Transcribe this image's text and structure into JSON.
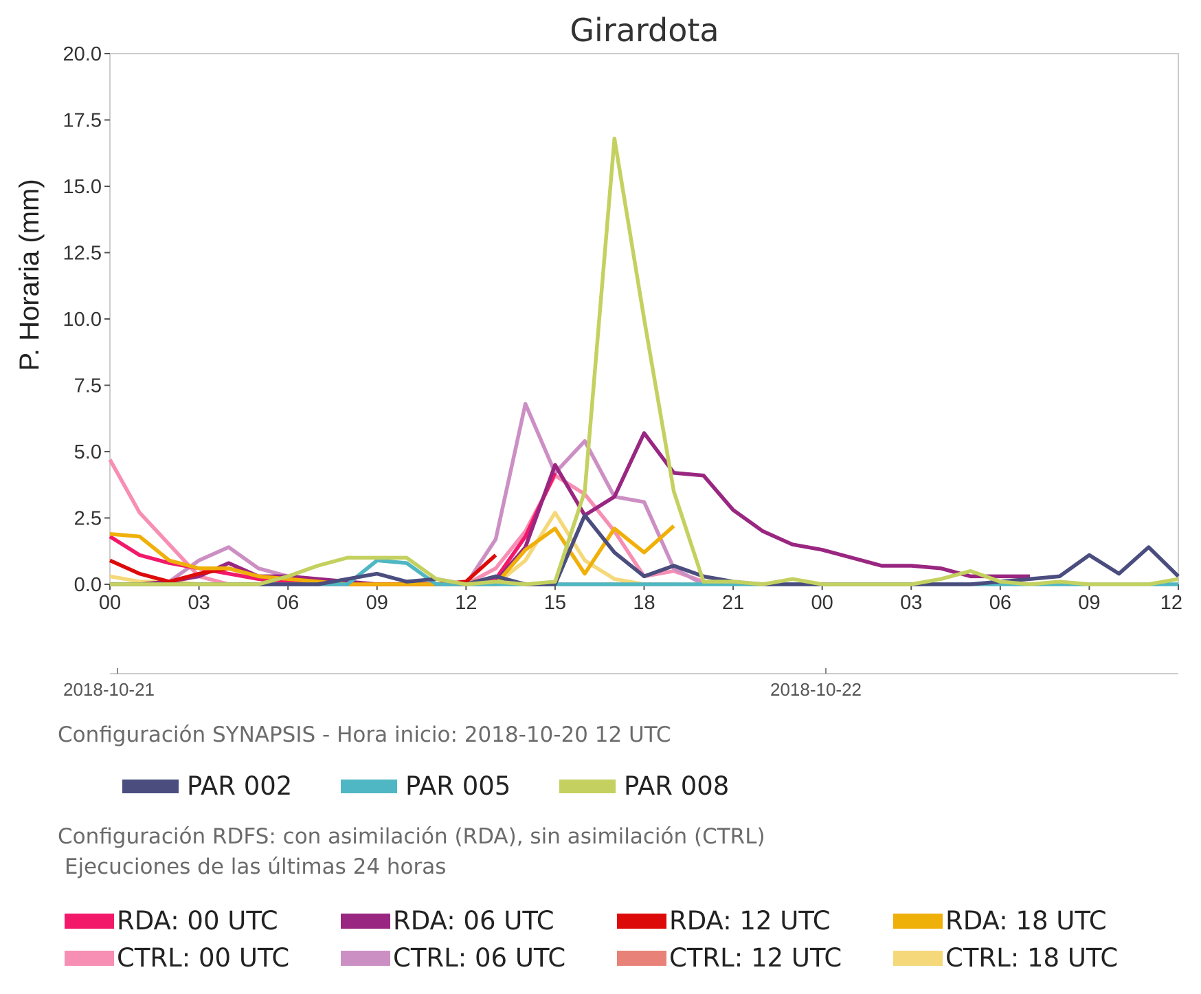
{
  "chart_data": {
    "type": "line",
    "title": "Girardota",
    "ylabel": "P. Horaria (mm)",
    "xlabel": "",
    "ylim": [
      0,
      20
    ],
    "xlim": [
      0,
      36
    ],
    "yticks": [
      "0.0",
      "2.5",
      "5.0",
      "7.5",
      "10.0",
      "12.5",
      "15.0",
      "17.5",
      "20.0"
    ],
    "xticks": [
      "00",
      "03",
      "06",
      "09",
      "12",
      "15",
      "18",
      "21",
      "00",
      "03",
      "06",
      "09",
      "12"
    ],
    "date_labels": [
      "2018-10-21",
      "2018-10-22"
    ],
    "grid": false,
    "series": [
      {
        "name": "CTRL: 00 UTC",
        "color": "#f78eb4",
        "x": [
          0,
          1,
          2,
          3,
          4,
          5,
          6,
          7,
          8,
          9,
          10,
          11,
          12,
          13,
          14,
          15,
          16,
          17,
          18,
          19,
          20
        ],
        "values": [
          4.7,
          2.7,
          1.5,
          0.3,
          0.0,
          0.0,
          0.0,
          0.0,
          0.0,
          0.0,
          0.0,
          0.0,
          0.0,
          0.6,
          2.0,
          4.1,
          3.4,
          2.0,
          0.3,
          0.5,
          0.1
        ]
      },
      {
        "name": "CTRL: 06 UTC",
        "color": "#cc8fc4",
        "x": [
          2,
          3,
          4,
          5,
          6,
          7,
          8,
          9,
          10,
          11,
          12,
          13,
          14,
          15,
          16,
          17,
          18,
          19,
          20
        ],
        "values": [
          0.1,
          0.9,
          1.4,
          0.6,
          0.3,
          0.1,
          0.0,
          0.0,
          0.0,
          0.0,
          0.0,
          1.7,
          6.8,
          4.2,
          5.4,
          3.3,
          3.1,
          0.6,
          0.0
        ]
      },
      {
        "name": "CTRL: 12 UTC",
        "color": "#e88278",
        "x": [
          12,
          13,
          14,
          15,
          16,
          17,
          18,
          19
        ],
        "values": [
          0.1,
          0.2,
          0.0,
          0.0,
          0.0,
          0.0,
          0.0,
          0.0
        ]
      },
      {
        "name": "CTRL: 18 UTC",
        "color": "#f5d87a",
        "x": [
          0,
          1,
          2,
          3,
          4,
          5,
          6,
          7,
          8,
          9,
          10,
          11,
          12,
          13,
          14,
          15,
          16,
          17,
          18,
          19,
          20
        ],
        "values": [
          0.3,
          0.1,
          0.1,
          0.0,
          0.0,
          0.0,
          0.0,
          0.0,
          0.0,
          0.0,
          0.0,
          0.0,
          0.0,
          0.0,
          0.9,
          2.7,
          0.9,
          0.2,
          0.0,
          0.0,
          0.0
        ]
      },
      {
        "name": "RDA: 00 UTC",
        "color": "#f2196a",
        "x": [
          0,
          1,
          2,
          3,
          4,
          5,
          6,
          7,
          8,
          9,
          10,
          11,
          12,
          13,
          14,
          15
        ],
        "values": [
          1.8,
          1.1,
          0.8,
          0.6,
          0.4,
          0.2,
          0.1,
          0.0,
          0.0,
          0.0,
          0.0,
          0.0,
          0.0,
          0.2,
          1.8,
          4.2
        ]
      },
      {
        "name": "RDA: 06 UTC",
        "color": "#992680",
        "x": [
          0,
          1,
          2,
          3,
          4,
          5,
          6,
          7,
          8,
          9,
          10,
          11,
          12,
          13,
          14,
          15,
          16,
          17,
          18,
          19,
          20,
          21,
          22,
          23,
          24,
          25,
          26,
          27,
          28,
          29,
          30,
          31
        ],
        "values": [
          0.0,
          0.0,
          0.1,
          0.3,
          0.8,
          0.3,
          0.3,
          0.2,
          0.1,
          0.0,
          0.0,
          0.0,
          0.0,
          0.1,
          1.4,
          4.5,
          2.6,
          3.3,
          5.7,
          4.2,
          4.1,
          2.8,
          2.0,
          1.5,
          1.3,
          1.0,
          0.7,
          0.7,
          0.6,
          0.3,
          0.3,
          0.3
        ]
      },
      {
        "name": "RDA: 12 UTC",
        "color": "#dd0a0a",
        "x": [
          0,
          1,
          2,
          3,
          4,
          5,
          6,
          7,
          8,
          9,
          10,
          11,
          12,
          13
        ],
        "values": [
          0.9,
          0.4,
          0.1,
          0.4,
          0.6,
          0.3,
          0.2,
          0.1,
          0.0,
          0.0,
          0.0,
          0.0,
          0.1,
          1.1
        ]
      },
      {
        "name": "RDA: 18 UTC",
        "color": "#f0b00a",
        "x": [
          0,
          1,
          2,
          3,
          4,
          5,
          6,
          7,
          8,
          9,
          10,
          11,
          12,
          13,
          14,
          15,
          16,
          17,
          18,
          19
        ],
        "values": [
          1.9,
          1.8,
          0.9,
          0.6,
          0.6,
          0.3,
          0.2,
          0.1,
          0.0,
          0.0,
          0.0,
          0.0,
          0.0,
          0.0,
          1.3,
          2.1,
          0.4,
          2.1,
          1.2,
          2.2
        ]
      },
      {
        "name": "PAR 005",
        "color": "#4fb7c3",
        "x": [
          0,
          1,
          2,
          3,
          4,
          5,
          6,
          7,
          8,
          9,
          10,
          11,
          12,
          13,
          14,
          15,
          16,
          17,
          18,
          19,
          20,
          21,
          22,
          23,
          24,
          25,
          26,
          27,
          28,
          29,
          30,
          31,
          32,
          33,
          34,
          35,
          36
        ],
        "values": [
          0.0,
          0.0,
          0.0,
          0.0,
          0.0,
          0.0,
          0.0,
          0.0,
          0.0,
          0.9,
          0.8,
          0.0,
          0.0,
          0.0,
          0.0,
          0.0,
          0.0,
          0.0,
          0.0,
          0.0,
          0.0,
          0.0,
          0.0,
          0.0,
          0.0,
          0.0,
          0.0,
          0.0,
          0.0,
          0.0,
          0.0,
          0.0,
          0.0,
          0.0,
          0.0,
          0.0,
          0.0
        ]
      },
      {
        "name": "PAR 002",
        "color": "#4a4d7e",
        "x": [
          0,
          1,
          2,
          3,
          4,
          5,
          6,
          7,
          8,
          9,
          10,
          11,
          12,
          13,
          14,
          15,
          16,
          17,
          18,
          19,
          20,
          21,
          22,
          23,
          24,
          25,
          26,
          27,
          28,
          29,
          30,
          31,
          32,
          33,
          34,
          35,
          36
        ],
        "values": [
          0.0,
          0.0,
          0.0,
          0.0,
          0.0,
          0.0,
          0.0,
          0.0,
          0.2,
          0.4,
          0.1,
          0.2,
          0.0,
          0.3,
          0.0,
          0.0,
          2.6,
          1.2,
          0.3,
          0.7,
          0.3,
          0.1,
          0.0,
          0.0,
          0.0,
          0.0,
          0.0,
          0.0,
          0.0,
          0.0,
          0.1,
          0.2,
          0.3,
          1.1,
          0.4,
          1.4,
          0.3
        ]
      },
      {
        "name": "PAR 008",
        "color": "#c4d160",
        "x": [
          0,
          1,
          2,
          3,
          4,
          5,
          6,
          7,
          8,
          9,
          10,
          11,
          12,
          13,
          14,
          15,
          16,
          17,
          18,
          19,
          20,
          21,
          22,
          23,
          24,
          25,
          26,
          27,
          28,
          29,
          30,
          31,
          32,
          33,
          34,
          35,
          36
        ],
        "values": [
          0.0,
          0.0,
          0.0,
          0.0,
          0.0,
          0.0,
          0.3,
          0.7,
          1.0,
          1.0,
          1.0,
          0.2,
          0.0,
          0.1,
          0.0,
          0.1,
          3.5,
          16.8,
          10.0,
          3.5,
          0.1,
          0.1,
          0.0,
          0.2,
          0.0,
          0.0,
          0.0,
          0.0,
          0.2,
          0.5,
          0.1,
          0.0,
          0.1,
          0.0,
          0.0,
          0.0,
          0.2
        ]
      }
    ]
  },
  "captions": {
    "synapsis": "Configuración SYNAPSIS - Hora inicio: 2018-10-20 12 UTC",
    "rdfs_line1": "Configuración RDFS: con asimilación (RDA), sin asimilación (CTRL)",
    "rdfs_line2": " Ejecuciones de las últimas 24 horas"
  },
  "legend_synapsis": [
    {
      "label": "PAR 002",
      "color": "#4a4d7e"
    },
    {
      "label": "PAR 005",
      "color": "#4fb7c3"
    },
    {
      "label": "PAR 008",
      "color": "#c4d160"
    }
  ],
  "legend_rdfs": [
    {
      "label": "RDA: 00 UTC",
      "color": "#f2196a"
    },
    {
      "label": "RDA: 06 UTC",
      "color": "#992680"
    },
    {
      "label": "RDA: 12 UTC",
      "color": "#dd0a0a"
    },
    {
      "label": "RDA: 18 UTC",
      "color": "#f0b00a"
    },
    {
      "label": "CTRL: 00 UTC",
      "color": "#f78eb4"
    },
    {
      "label": "CTRL: 06 UTC",
      "color": "#cc8fc4"
    },
    {
      "label": "CTRL: 12 UTC",
      "color": "#e88278"
    },
    {
      "label": "CTRL: 18 UTC",
      "color": "#f5d87a"
    }
  ]
}
